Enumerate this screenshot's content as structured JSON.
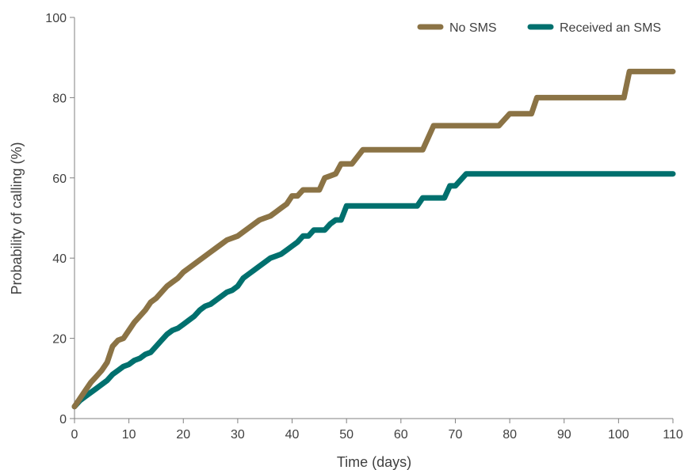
{
  "chart_data": {
    "type": "line",
    "xlabel": "Time (days)",
    "ylabel": "Probability of calling (%)",
    "xlim": [
      0,
      110
    ],
    "ylim": [
      0,
      100
    ],
    "xticks": [
      0,
      10,
      20,
      30,
      40,
      50,
      60,
      70,
      80,
      90,
      100,
      110
    ],
    "yticks": [
      0,
      20,
      40,
      60,
      80,
      100
    ],
    "grid": false,
    "legend_position": "top-right",
    "step": true,
    "series": [
      {
        "name": "No SMS",
        "color": "#8B7345",
        "points": [
          [
            0,
            3
          ],
          [
            1,
            5
          ],
          [
            2,
            7
          ],
          [
            3,
            9
          ],
          [
            4,
            10.5
          ],
          [
            5,
            12
          ],
          [
            6,
            14
          ],
          [
            7,
            18
          ],
          [
            8,
            19.5
          ],
          [
            9,
            20
          ],
          [
            10,
            22
          ],
          [
            11,
            24
          ],
          [
            12,
            25.5
          ],
          [
            13,
            27
          ],
          [
            14,
            29
          ],
          [
            15,
            30
          ],
          [
            16,
            31.5
          ],
          [
            17,
            33
          ],
          [
            18,
            34
          ],
          [
            19,
            35
          ],
          [
            20,
            36.5
          ],
          [
            21,
            37.5
          ],
          [
            22,
            38.5
          ],
          [
            23,
            39.5
          ],
          [
            24,
            40.5
          ],
          [
            25,
            41.5
          ],
          [
            26,
            42.5
          ],
          [
            27,
            43.5
          ],
          [
            28,
            44.5
          ],
          [
            29,
            45
          ],
          [
            30,
            45.5
          ],
          [
            31,
            46.5
          ],
          [
            32,
            47.5
          ],
          [
            33,
            48.5
          ],
          [
            34,
            49.5
          ],
          [
            35,
            50
          ],
          [
            36,
            50.5
          ],
          [
            37,
            51.5
          ],
          [
            38,
            52.5
          ],
          [
            39,
            53.5
          ],
          [
            40,
            55.5
          ],
          [
            41,
            55.5
          ],
          [
            42,
            57
          ],
          [
            43,
            57
          ],
          [
            45,
            57
          ],
          [
            46,
            60
          ],
          [
            47,
            60.5
          ],
          [
            48,
            61
          ],
          [
            49,
            63.5
          ],
          [
            50,
            63.5
          ],
          [
            51,
            63.5
          ],
          [
            53,
            67
          ],
          [
            64,
            67
          ],
          [
            66,
            73
          ],
          [
            78,
            73
          ],
          [
            80,
            76
          ],
          [
            84,
            76
          ],
          [
            85,
            80
          ],
          [
            101,
            80
          ],
          [
            102,
            86.5
          ],
          [
            110,
            86.5
          ]
        ]
      },
      {
        "name": "Received an SMS",
        "color": "#00706E",
        "points": [
          [
            0,
            3
          ],
          [
            1,
            4.5
          ],
          [
            2,
            5.5
          ],
          [
            3,
            6.5
          ],
          [
            4,
            7.5
          ],
          [
            5,
            8.5
          ],
          [
            6,
            9.5
          ],
          [
            7,
            11
          ],
          [
            8,
            12
          ],
          [
            9,
            13
          ],
          [
            10,
            13.5
          ],
          [
            11,
            14.5
          ],
          [
            12,
            15
          ],
          [
            13,
            16
          ],
          [
            14,
            16.5
          ],
          [
            15,
            18
          ],
          [
            16,
            19.5
          ],
          [
            17,
            21
          ],
          [
            18,
            22
          ],
          [
            19,
            22.5
          ],
          [
            20,
            23.5
          ],
          [
            21,
            24.5
          ],
          [
            22,
            25.5
          ],
          [
            23,
            27
          ],
          [
            24,
            28
          ],
          [
            25,
            28.5
          ],
          [
            26,
            29.5
          ],
          [
            27,
            30.5
          ],
          [
            28,
            31.5
          ],
          [
            29,
            32
          ],
          [
            30,
            33
          ],
          [
            31,
            35
          ],
          [
            32,
            36
          ],
          [
            33,
            37
          ],
          [
            34,
            38
          ],
          [
            35,
            39
          ],
          [
            36,
            40
          ],
          [
            37,
            40.5
          ],
          [
            38,
            41
          ],
          [
            39,
            42
          ],
          [
            40,
            43
          ],
          [
            41,
            44
          ],
          [
            42,
            45.5
          ],
          [
            43,
            45.5
          ],
          [
            44,
            47
          ],
          [
            46,
            47
          ],
          [
            47,
            48.5
          ],
          [
            48,
            49.5
          ],
          [
            49,
            49.5
          ],
          [
            50,
            53
          ],
          [
            63,
            53
          ],
          [
            64,
            55
          ],
          [
            68,
            55
          ],
          [
            69,
            58
          ],
          [
            70,
            58
          ],
          [
            72,
            61
          ],
          [
            110,
            61
          ]
        ]
      }
    ]
  }
}
